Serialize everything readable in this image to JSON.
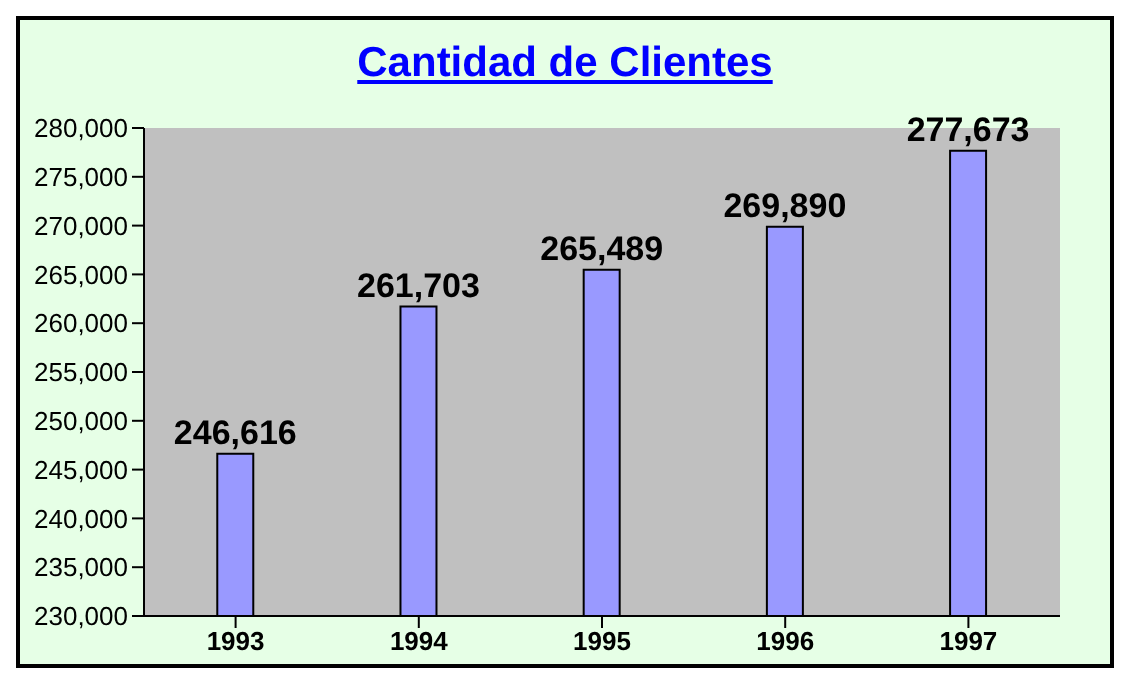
{
  "chart_data": {
    "type": "bar",
    "title": "Cantidad de Clientes",
    "categories": [
      "1993",
      "1994",
      "1995",
      "1996",
      "1997"
    ],
    "values": [
      246616,
      261703,
      265489,
      269890,
      277673
    ],
    "value_labels": [
      "246,616",
      "261,703",
      "265,489",
      "269,890",
      "277,673"
    ],
    "color": "#9999ff",
    "ylim": [
      230000,
      280000
    ],
    "yticks": [
      {
        "value": 230000,
        "label": "230,000"
      },
      {
        "value": 235000,
        "label": "235,000"
      },
      {
        "value": 240000,
        "label": "240,000"
      },
      {
        "value": 245000,
        "label": "245,000"
      },
      {
        "value": 250000,
        "label": "250,000"
      },
      {
        "value": 255000,
        "label": "255,000"
      },
      {
        "value": 260000,
        "label": "260,000"
      },
      {
        "value": 265000,
        "label": "265,000"
      },
      {
        "value": 270000,
        "label": "270,000"
      },
      {
        "value": 275000,
        "label": "275,000"
      },
      {
        "value": 280000,
        "label": "280,000"
      }
    ],
    "grid": false,
    "legend": false
  }
}
